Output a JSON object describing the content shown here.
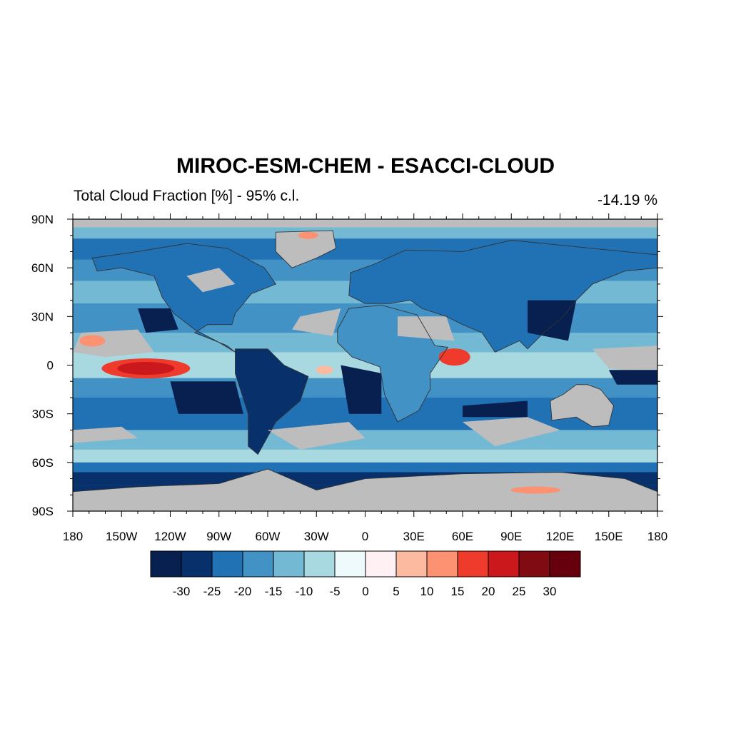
{
  "title": "MIROC-ESM-CHEM - ESACCI-CLOUD",
  "left_subtitle": "Total Cloud Fraction [%] - 95% c.l.",
  "right_subtitle": "-14.19 %",
  "map": {
    "projection": "cylindrical equidistant",
    "lon_range": [
      -180,
      180
    ],
    "lat_range": [
      -90,
      90
    ],
    "x_ticks": [
      {
        "lon": -180,
        "label": "180"
      },
      {
        "lon": -150,
        "label": "150W"
      },
      {
        "lon": -120,
        "label": "120W"
      },
      {
        "lon": -90,
        "label": "90W"
      },
      {
        "lon": -60,
        "label": "60W"
      },
      {
        "lon": -30,
        "label": "30W"
      },
      {
        "lon": 0,
        "label": "0"
      },
      {
        "lon": 30,
        "label": "30E"
      },
      {
        "lon": 60,
        "label": "60E"
      },
      {
        "lon": 90,
        "label": "90E"
      },
      {
        "lon": 120,
        "label": "120E"
      },
      {
        "lon": 150,
        "label": "150E"
      },
      {
        "lon": 180,
        "label": "180"
      }
    ],
    "y_ticks": [
      {
        "lat": 90,
        "label": "90N"
      },
      {
        "lat": 60,
        "label": "60N"
      },
      {
        "lat": 30,
        "label": "30N"
      },
      {
        "lat": 0,
        "label": "0"
      },
      {
        "lat": -30,
        "label": "30S"
      },
      {
        "lat": -60,
        "label": "60S"
      },
      {
        "lat": -90,
        "label": "90S"
      }
    ],
    "masked_color": "#bdbdbd",
    "ocean_base_color": "#4292c6"
  },
  "colorbar": {
    "colors": [
      "#08204f",
      "#08306b",
      "#2171b5",
      "#4292c6",
      "#74b9d4",
      "#a8d8e0",
      "#eefafc",
      "#fff0f3",
      "#fcbba1",
      "#fc9272",
      "#ef3b2c",
      "#cb181d",
      "#800b12",
      "#67000d"
    ],
    "labels": [
      "-30",
      "-25",
      "-20",
      "-15",
      "-10",
      "-5",
      "0",
      "5",
      "10",
      "15",
      "20",
      "25",
      "30"
    ]
  }
}
